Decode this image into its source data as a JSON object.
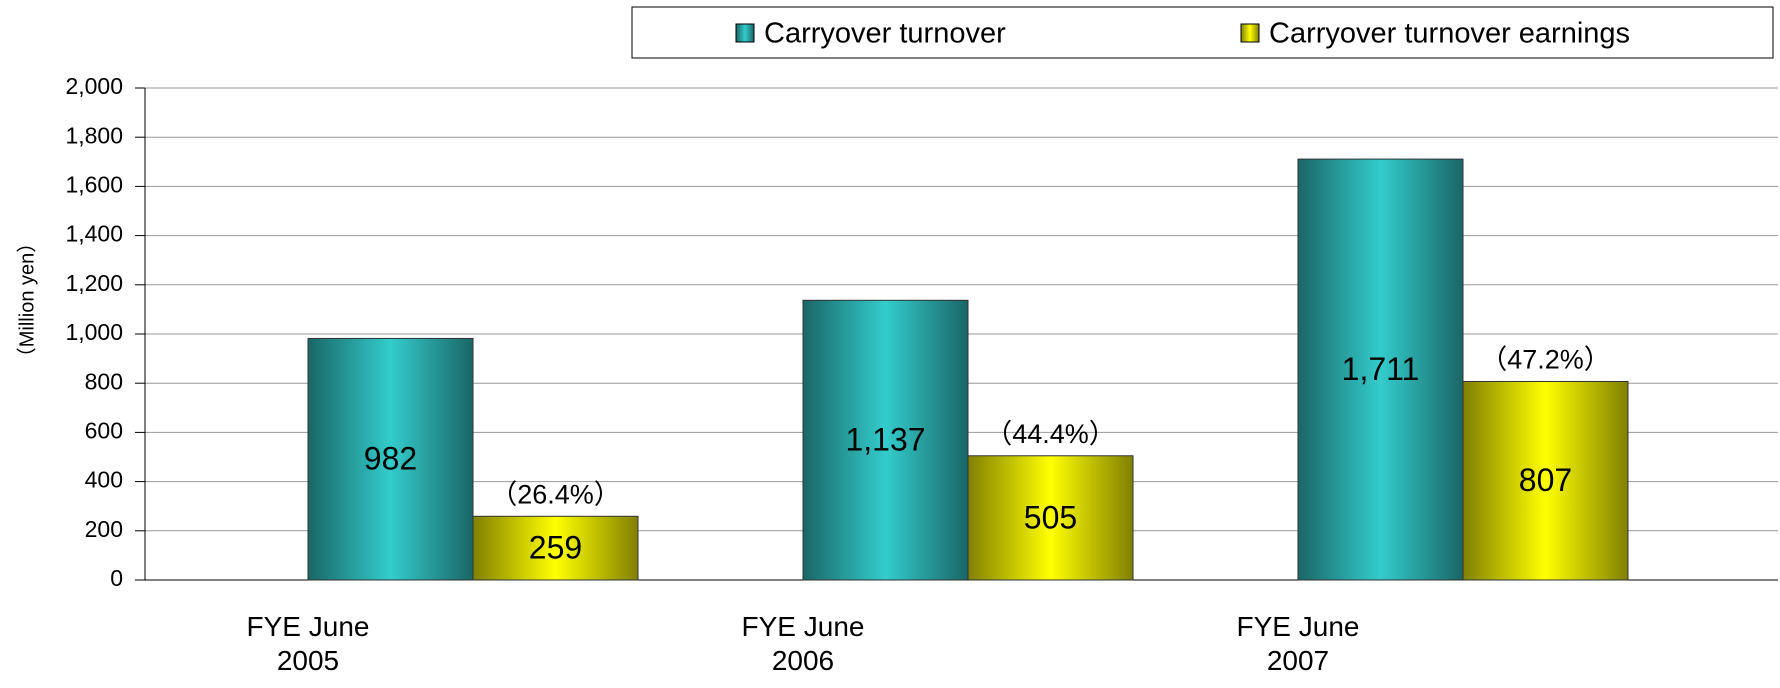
{
  "chart_data": {
    "type": "bar",
    "y_label": "（Million yen）",
    "categories": [
      "FYE June 2005",
      "FYE June 2006",
      "FYE June 2007"
    ],
    "series": [
      {
        "name": "Carryover turnover",
        "color": "#33cccc",
        "values": [
          982,
          1137,
          1711
        ],
        "value_labels": [
          "982",
          "1,137",
          "1,711"
        ]
      },
      {
        "name": "Carryover turnover earnings",
        "color": "#ffff00",
        "values": [
          259,
          505,
          807
        ],
        "value_labels": [
          "259",
          "505",
          "807"
        ],
        "annotations": [
          "（26.4%）",
          "（44.4%）",
          "（47.2%）"
        ]
      }
    ],
    "ylim": [
      0,
      2000
    ],
    "yticks": [
      0,
      200,
      400,
      600,
      800,
      {
        "value": 1000,
        "label": "1,000"
      },
      {
        "value": 1200,
        "label": "1,200"
      },
      {
        "value": 1400,
        "label": "1,400"
      },
      {
        "value": 1600,
        "label": "1,600"
      },
      {
        "value": 1800,
        "label": "1,800"
      },
      {
        "value": 2000,
        "label": "2,000"
      }
    ],
    "grid": true,
    "legend": "top-right"
  }
}
